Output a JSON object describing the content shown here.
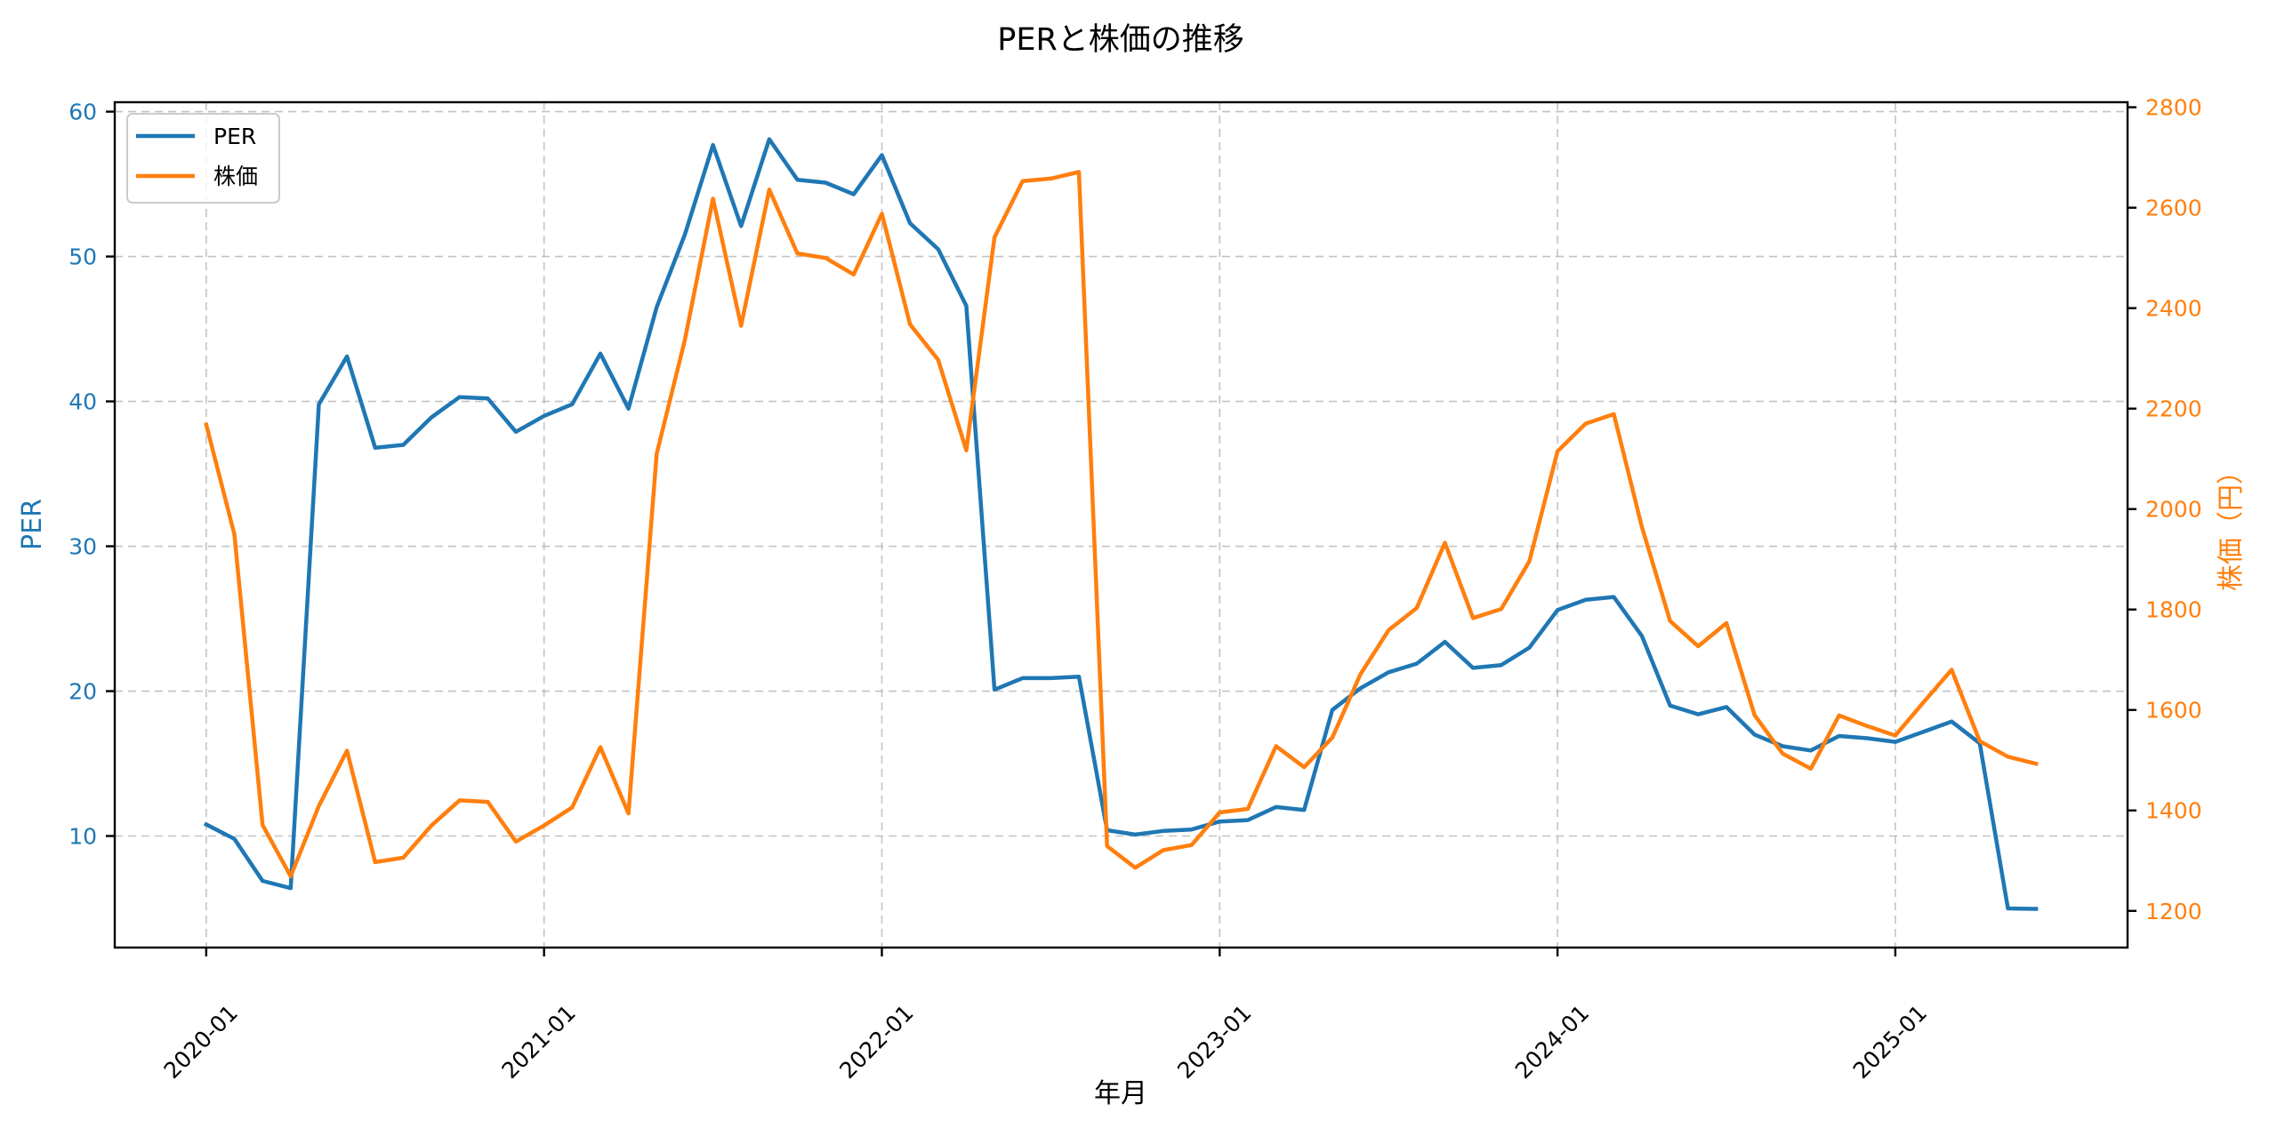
{
  "chart_data": {
    "type": "line",
    "title": "PERと株価の推移",
    "xlabel": "年月",
    "ylabel": "PER",
    "ylabel_right": "株価（円）",
    "grid": true,
    "grid_style": "dashed",
    "legend_position": "upper left",
    "x_tick_labels": [
      "2020-01",
      "2021-01",
      "2022-01",
      "2023-01",
      "2024-01",
      "2025-01"
    ],
    "y_ticks_left": [
      10,
      20,
      30,
      40,
      50,
      60
    ],
    "y_ticks_right": [
      1200,
      1400,
      1600,
      1800,
      2000,
      2200,
      2400,
      2600,
      2800
    ],
    "ylim_left": [
      2.3,
      60.65
    ],
    "ylim_right": [
      1127,
      2810
    ],
    "x": [
      "2020-01",
      "2020-02",
      "2020-03",
      "2020-04",
      "2020-05",
      "2020-06",
      "2020-07",
      "2020-08",
      "2020-09",
      "2020-10",
      "2020-11",
      "2020-12",
      "2021-01",
      "2021-02",
      "2021-03",
      "2021-04",
      "2021-05",
      "2021-06",
      "2021-07",
      "2021-08",
      "2021-09",
      "2021-10",
      "2021-11",
      "2021-12",
      "2022-01",
      "2022-02",
      "2022-03",
      "2022-04",
      "2022-05",
      "2022-06",
      "2022-07",
      "2022-08",
      "2022-09",
      "2022-10",
      "2022-11",
      "2022-12",
      "2023-01",
      "2023-02",
      "2023-03",
      "2023-04",
      "2023-05",
      "2023-06",
      "2023-07",
      "2023-08",
      "2023-09",
      "2023-10",
      "2023-11",
      "2023-12",
      "2024-01",
      "2024-02",
      "2024-03",
      "2024-04",
      "2024-05",
      "2024-06",
      "2024-07",
      "2024-08",
      "2024-09",
      "2024-10",
      "2024-11",
      "2024-12",
      "2025-01",
      "2025-02",
      "2025-03",
      "2025-04",
      "2025-05",
      "2025-06"
    ],
    "series": [
      {
        "name": "PER",
        "axis": "left",
        "color": "#1f77b4",
        "values": [
          10.8,
          9.8,
          6.9,
          6.4,
          39.8,
          43.1,
          36.8,
          37.0,
          38.9,
          40.3,
          40.2,
          37.9,
          39.0,
          39.8,
          43.3,
          39.5,
          46.5,
          51.5,
          57.7,
          52.1,
          58.1,
          55.3,
          55.1,
          54.3,
          57.0,
          52.3,
          50.5,
          46.6,
          20.1,
          20.9,
          20.9,
          21.0,
          10.4,
          10.1,
          10.35,
          10.45,
          11.0,
          11.1,
          12.0,
          11.8,
          18.7,
          20.2,
          21.3,
          21.9,
          23.4,
          21.6,
          21.8,
          23.0,
          25.6,
          26.3,
          26.5,
          23.8,
          19.0,
          18.4,
          18.9,
          17.0,
          16.2,
          15.9,
          16.9,
          16.75,
          16.5,
          17.2,
          17.9,
          16.4,
          5.0,
          4.97
        ]
      },
      {
        "name": "株価",
        "axis": "right",
        "color": "#ff7f0e",
        "values": [
          2168,
          1950,
          1371,
          1269,
          1409,
          1519,
          1297,
          1306,
          1370,
          1420,
          1417,
          1338,
          1370,
          1406,
          1526,
          1394,
          2110,
          2336,
          2618,
          2365,
          2636,
          2509,
          2500,
          2467,
          2588,
          2368,
          2297,
          2117,
          2541,
          2653,
          2658,
          2671,
          1329,
          1286,
          1321,
          1331,
          1396,
          1403,
          1528,
          1486,
          1545,
          1671,
          1759,
          1803,
          1933,
          1783,
          1801,
          1896,
          2115,
          2170,
          2189,
          1964,
          1777,
          1727,
          1773,
          1590,
          1513,
          1483,
          1589,
          1568,
          1549,
          1615,
          1680,
          1538,
          1507,
          1493
        ]
      }
    ]
  },
  "title": "PERと株価の推移",
  "axes": {
    "xlabel": "年月",
    "ylabel_left": "PER",
    "ylabel_right": "株価（円）"
  },
  "legend": {
    "items": [
      {
        "label": "PER",
        "color": "#1f77b4"
      },
      {
        "label": "株価",
        "color": "#ff7f0e"
      }
    ]
  },
  "colors": {
    "per": "#1f77b4",
    "price": "#ff7f0e",
    "grid": "#b0b0b0",
    "frame": "#000000"
  }
}
